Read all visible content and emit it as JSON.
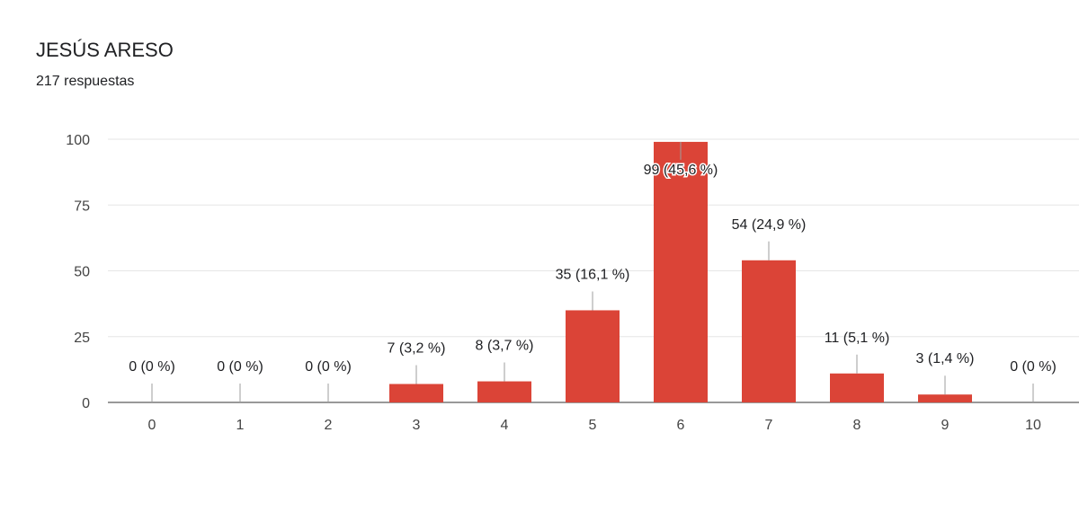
{
  "header": {
    "title": "JESÚS ARESO",
    "subtitle": "217 respuestas"
  },
  "chart_data": {
    "type": "bar",
    "title": "JESÚS ARESO",
    "subtitle": "217 respuestas",
    "xlabel": "",
    "ylabel": "",
    "categories": [
      "0",
      "1",
      "2",
      "3",
      "4",
      "5",
      "6",
      "7",
      "8",
      "9",
      "10"
    ],
    "values": [
      0,
      0,
      0,
      7,
      8,
      35,
      99,
      54,
      11,
      3,
      0
    ],
    "data_labels": [
      "0 (0 %)",
      "0 (0 %)",
      "0 (0 %)",
      "7 (3,2 %)",
      "8 (3,7 %)",
      "35 (16,1 %)",
      "99 (45,6 %)",
      "54 (24,9 %)",
      "11 (5,1 %)",
      "3 (1,4 %)",
      "0 (0 %)"
    ],
    "y_ticks": [
      "0",
      "25",
      "50",
      "75",
      "100"
    ],
    "ylim": [
      0,
      100
    ],
    "grid": true,
    "legend": "none",
    "bar_color": "#db4437",
    "grid_color": "#e6e6e6",
    "axis_color": "#333333",
    "leader_color": "#9e9e9e"
  }
}
